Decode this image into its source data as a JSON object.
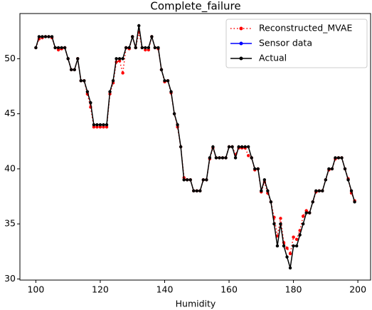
{
  "chart_data": {
    "type": "line",
    "title": "Complete_failure",
    "x_label": "Humidity",
    "x": [
      100,
      101,
      102,
      103,
      104,
      105,
      106,
      107,
      108,
      109,
      110,
      111,
      112,
      113,
      114,
      115,
      116,
      117,
      118,
      119,
      120,
      121,
      122,
      123,
      124,
      125,
      126,
      127,
      128,
      129,
      130,
      131,
      132,
      133,
      134,
      135,
      136,
      137,
      138,
      139,
      140,
      141,
      142,
      143,
      144,
      145,
      146,
      147,
      148,
      149,
      150,
      151,
      152,
      153,
      154,
      155,
      156,
      157,
      158,
      159,
      160,
      161,
      162,
      163,
      164,
      165,
      166,
      167,
      168,
      169,
      170,
      171,
      172,
      173,
      174,
      175,
      176,
      177,
      178,
      179,
      180,
      181,
      182,
      183,
      184,
      185,
      186,
      187,
      188,
      189,
      190,
      191,
      192,
      193,
      194,
      195,
      196,
      197,
      198,
      199
    ],
    "series": [
      {
        "name": "Reconstructed_MVAE",
        "color": "#ff0000",
        "style": "dotted",
        "values": [
          51,
          51.8,
          51.9,
          52,
          52,
          51.9,
          51,
          50.8,
          50.9,
          51,
          50,
          49,
          49,
          50,
          48,
          48,
          46.8,
          45.6,
          43.8,
          43.8,
          43.8,
          43.8,
          43.8,
          46.8,
          47.8,
          49.7,
          49.8,
          48.7,
          51,
          50.9,
          52,
          51,
          52.4,
          51,
          50.8,
          50.8,
          52,
          51,
          50.9,
          49,
          47.9,
          48,
          46.9,
          45,
          43.8,
          42,
          39.2,
          39,
          39,
          38,
          38,
          38,
          39,
          39,
          40.9,
          41.9,
          41,
          41,
          41,
          41,
          42,
          42,
          41.3,
          41.9,
          41.9,
          41.9,
          41.2,
          41,
          39.9,
          40,
          37.9,
          38.8,
          37.8,
          37,
          35.6,
          33.9,
          35.5,
          33.3,
          32.8,
          32.3,
          33.8,
          33.6,
          34.4,
          35.7,
          36.2,
          36,
          37,
          37.9,
          38,
          38,
          39,
          39.9,
          40,
          40.9,
          41,
          41,
          40,
          39.1,
          37.8,
          37.1
        ]
      },
      {
        "name": "Sensor data",
        "color": "#0000ff",
        "style": "solid",
        "values": [
          null,
          null,
          null,
          null,
          null,
          null,
          null,
          null,
          null,
          null,
          null,
          null,
          null,
          null,
          null,
          null,
          null,
          null,
          null,
          null,
          null,
          null,
          null,
          null,
          null,
          null,
          null,
          null,
          null,
          null,
          null,
          null,
          null,
          null,
          null,
          null,
          null,
          null,
          null,
          null,
          null,
          null,
          null,
          null,
          null,
          null,
          null,
          null,
          null,
          null,
          null,
          null,
          null,
          null,
          null,
          null,
          null,
          null,
          null,
          null,
          null,
          null,
          null,
          null,
          null,
          null,
          null,
          null,
          null,
          null,
          null,
          null,
          null,
          null,
          null,
          null,
          null,
          null,
          null,
          null,
          null,
          null,
          null,
          null,
          null,
          null,
          null,
          null,
          null,
          null,
          null,
          null,
          null,
          null,
          null,
          null,
          null,
          null,
          null,
          null
        ]
      },
      {
        "name": "Actual",
        "color": "#000000",
        "style": "solid",
        "values": [
          51,
          52,
          52,
          52,
          52,
          52,
          51,
          51,
          51,
          51,
          50,
          49,
          49,
          50,
          48,
          48,
          47,
          46,
          44,
          44,
          44,
          44,
          44,
          47,
          48,
          50,
          50,
          50,
          51,
          51,
          52,
          51,
          53,
          51,
          51,
          51,
          52,
          51,
          51,
          49,
          48,
          48,
          47,
          45,
          44,
          42,
          39,
          39,
          39,
          38,
          38,
          38,
          39,
          39,
          41,
          42,
          41,
          41,
          41,
          41,
          42,
          42,
          41,
          42,
          42,
          42,
          42,
          41,
          40,
          40,
          38,
          39,
          38,
          37,
          35,
          33,
          35,
          33,
          32,
          31,
          33,
          33,
          34,
          35,
          36,
          36,
          37,
          38,
          38,
          38,
          39,
          40,
          40,
          41,
          41,
          41,
          40,
          39,
          38,
          37
        ]
      }
    ],
    "xlim": [
      95.05,
      203.95
    ],
    "ylim": [
      29.9,
      54.1
    ],
    "xticks": [
      100,
      120,
      140,
      160,
      180,
      200
    ],
    "yticks": [
      30,
      35,
      40,
      45,
      50
    ],
    "legend": "upper right",
    "grid": false
  }
}
